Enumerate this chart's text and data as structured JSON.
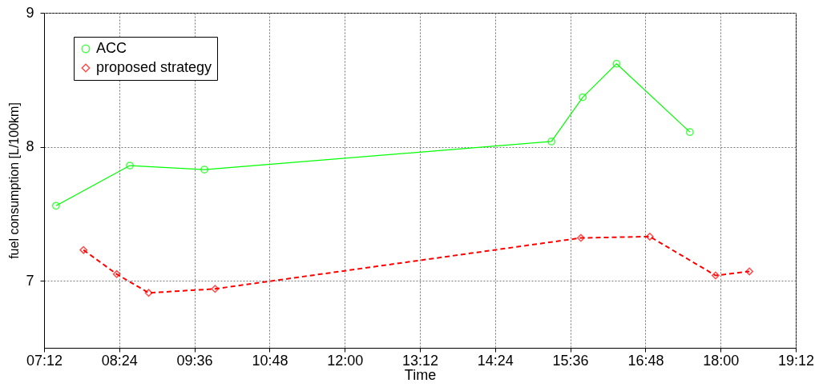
{
  "chart_data": {
    "type": "line",
    "xlabel": "Time",
    "ylabel": "fuel consumption [L/100km]",
    "xlim": [
      7.2,
      19.2
    ],
    "ylim": [
      6.5,
      9
    ],
    "xticks": [
      {
        "value": 7.2,
        "label": "07:12"
      },
      {
        "value": 8.4,
        "label": "08:24"
      },
      {
        "value": 9.6,
        "label": "09:36"
      },
      {
        "value": 10.8,
        "label": "10:48"
      },
      {
        "value": 12,
        "label": "12:00"
      },
      {
        "value": 13.2,
        "label": "13:12"
      },
      {
        "value": 14.4,
        "label": "14:24"
      },
      {
        "value": 15.6,
        "label": "15:36"
      },
      {
        "value": 16.8,
        "label": "16:48"
      },
      {
        "value": 18,
        "label": "18:00"
      },
      {
        "value": 19.2,
        "label": "19:12"
      }
    ],
    "yticks": [
      7,
      8,
      9
    ],
    "grid": true,
    "legend": "top left",
    "series": [
      {
        "name": "ACC",
        "color": "#00ff00",
        "marker": "circle",
        "line_style": "solid",
        "x": [
          7.39,
          8.57,
          9.76,
          15.3,
          15.8,
          16.34,
          17.51
        ],
        "values": [
          7.56,
          7.86,
          7.83,
          8.04,
          8.37,
          8.62,
          8.11
        ]
      },
      {
        "name": "proposed strategy",
        "color": "#ff0000",
        "marker": "diamond",
        "line_style": "dashed",
        "x": [
          7.83,
          8.36,
          8.87,
          9.93,
          15.77,
          16.87,
          17.92,
          18.46
        ],
        "values": [
          7.23,
          7.05,
          6.91,
          6.94,
          7.32,
          7.33,
          7.04,
          7.07
        ]
      }
    ]
  }
}
